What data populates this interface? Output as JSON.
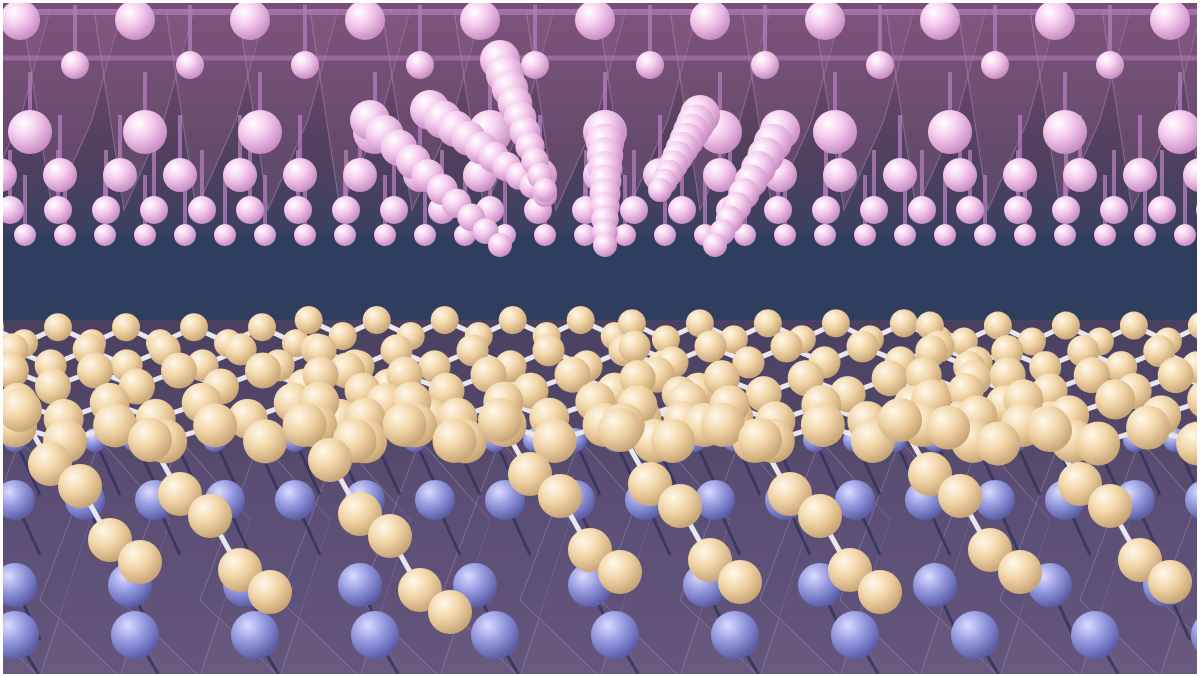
{
  "scene": {
    "colors": {
      "background_gap": "#2f3d5e",
      "upper_atoms": "#f3c8ec",
      "upper_bonds": "#b07ab8",
      "upper_polyhedra": "#8a5f86",
      "lower_chain_atoms": "#f1d2a2",
      "lower_chain_bonds": "#e8e6ef",
      "lower_base_atoms": "#8e92d8",
      "lower_polyhedra": "#5e4f7a",
      "frame": "#ffffff"
    }
  }
}
